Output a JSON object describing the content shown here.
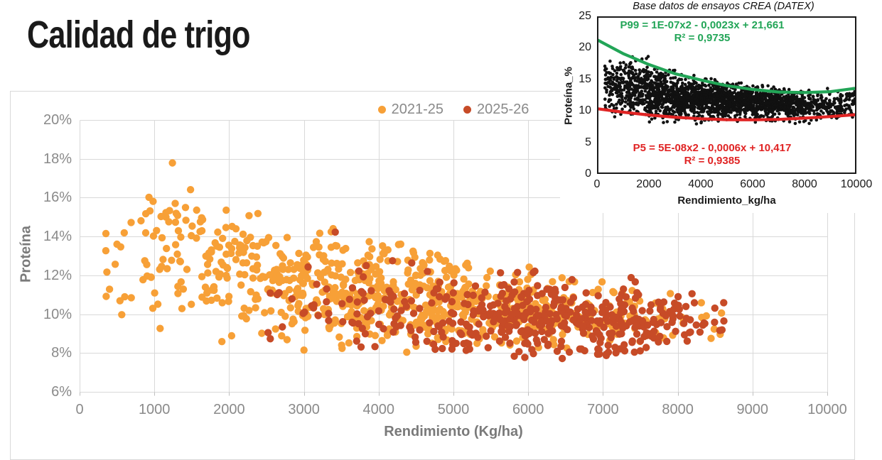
{
  "page": {
    "title": "Calidad de trigo"
  },
  "colors": {
    "series_2021_25": "#f7a037",
    "series_2025_26": "#c74b27",
    "axis_text": "#8a8a8a",
    "gridline": "#d9d9d9",
    "card_border": "#d9d9d9",
    "inset_point": "#111111",
    "inset_green": "#22a557",
    "inset_red": "#e02424"
  },
  "chart_data": [
    {
      "id": "main",
      "type": "scatter",
      "title": "",
      "xlabel": "Rendimiento (Kg/ha)",
      "ylabel": "Proteína",
      "xlim": [
        0,
        10000
      ],
      "ylim": [
        6,
        20
      ],
      "x_ticks": [
        "0",
        "1000",
        "2000",
        "3000",
        "4000",
        "5000",
        "6000",
        "7000",
        "8000",
        "9000",
        "10000"
      ],
      "x_tick_values": [
        0,
        1000,
        2000,
        3000,
        4000,
        5000,
        6000,
        7000,
        8000,
        9000,
        10000
      ],
      "y_ticks": [
        "20%",
        "18%",
        "16%",
        "14%",
        "12%",
        "10%",
        "8%",
        "6%"
      ],
      "y_tick_values": [
        20,
        18,
        16,
        14,
        12,
        10,
        8,
        6
      ],
      "grid": true,
      "legend_position": "top-center",
      "note": "Dense scatter; individual points not enumerable. Each series is encoded as distribution bands [xMin,xMax,count,proteinMean,proteinSD,proteinMin,proteinMax] that reproduce the visible cloud.",
      "series": [
        {
          "name": "2021-25",
          "color": "#f7a037",
          "marker_radius": 5.2,
          "seed": 1337,
          "bands": [
            [
              250,
              800,
              14,
              12.8,
              2.0,
              9.5,
              16.3
            ],
            [
              800,
              1600,
              55,
              13.6,
              2.1,
              9.0,
              18.0
            ],
            [
              1600,
              2500,
              95,
              12.2,
              1.7,
              8.4,
              15.6
            ],
            [
              2500,
              3500,
              135,
              11.5,
              1.5,
              8.0,
              14.6
            ],
            [
              3500,
              4500,
              160,
              11.0,
              1.3,
              8.0,
              13.8
            ],
            [
              4500,
              5500,
              150,
              10.5,
              1.15,
              8.0,
              13.2
            ],
            [
              5500,
              6500,
              105,
              10.2,
              1.0,
              8.2,
              12.6
            ],
            [
              6500,
              7500,
              55,
              10.0,
              0.9,
              8.2,
              11.9
            ],
            [
              7500,
              8600,
              22,
              9.9,
              0.7,
              8.7,
              11.2
            ]
          ]
        },
        {
          "name": "2025-26",
          "color": "#c74b27",
          "marker_radius": 5.2,
          "seed": 4242,
          "bands": [
            [
              2400,
              3600,
              22,
              10.4,
              1.4,
              8.0,
              14.7
            ],
            [
              3600,
              4700,
              55,
              10.2,
              1.2,
              8.0,
              13.0
            ],
            [
              4700,
              5700,
              95,
              10.0,
              1.1,
              7.9,
              12.9
            ],
            [
              5700,
              6600,
              115,
              9.8,
              1.1,
              7.6,
              13.7
            ],
            [
              6600,
              7500,
              110,
              9.6,
              0.95,
              7.6,
              13.0
            ],
            [
              7500,
              8200,
              50,
              9.6,
              0.8,
              8.2,
              11.6
            ],
            [
              8200,
              8620,
              12,
              9.8,
              0.6,
              8.9,
              10.9
            ]
          ]
        }
      ]
    },
    {
      "id": "inset",
      "type": "scatter",
      "title": "Base datos de ensayos CREA (DATEX)",
      "xlabel": "Rendimiento_kg/ha",
      "ylabel": "Proteína_%",
      "xlim": [
        0,
        10000
      ],
      "ylim": [
        0,
        25
      ],
      "x_ticks": [
        "0",
        "2000",
        "4000",
        "6000",
        "8000",
        "10000"
      ],
      "x_tick_values": [
        0,
        2000,
        4000,
        6000,
        8000,
        10000
      ],
      "y_ticks": [
        "25",
        "20",
        "15",
        "10",
        "5",
        "0"
      ],
      "y_tick_values": [
        25,
        20,
        15,
        10,
        5,
        0
      ],
      "grid": false,
      "note": "Black cloud of trial database points between P5 and P99 percentile curves.",
      "series": [
        {
          "name": "ensayos",
          "color": "#111111",
          "marker_radius": 2.3,
          "seed": 2024,
          "bands": [
            [
              300,
              1100,
              130,
              14.5,
              2.5,
              8.5,
              19.3
            ],
            [
              1100,
              2000,
              220,
              13.4,
              2.2,
              8.2,
              18.8
            ],
            [
              2000,
              3000,
              300,
              12.5,
              1.8,
              8.0,
              17.0
            ],
            [
              3000,
              4000,
              340,
              12.0,
              1.6,
              7.7,
              16.0
            ],
            [
              4000,
              5000,
              350,
              11.7,
              1.4,
              7.5,
              15.3
            ],
            [
              5000,
              6000,
              330,
              11.5,
              1.3,
              7.6,
              14.6
            ],
            [
              6000,
              7000,
              280,
              11.3,
              1.2,
              7.7,
              14.1
            ],
            [
              7000,
              8000,
              220,
              11.2,
              1.1,
              7.9,
              13.6
            ],
            [
              8000,
              9400,
              160,
              11.0,
              1.2,
              8.0,
              13.6
            ],
            [
              9400,
              10000,
              60,
              11.2,
              1.3,
              8.3,
              13.8
            ]
          ]
        }
      ],
      "curves": [
        {
          "name": "P99",
          "color": "#22a557",
          "equation": "P99 = 1E-07x2 - 0,0023x + 21,661",
          "r2": "R² = 0,9735",
          "points": [
            [
              0,
              21.3
            ],
            [
              1000,
              19.1
            ],
            [
              2000,
              17.35
            ],
            [
              3000,
              15.9
            ],
            [
              4000,
              14.9
            ],
            [
              5000,
              14.0
            ],
            [
              6000,
              13.4
            ],
            [
              7000,
              13.0
            ],
            [
              8000,
              12.9
            ],
            [
              9000,
              13.05
            ],
            [
              10000,
              13.6
            ]
          ]
        },
        {
          "name": "P5",
          "color": "#e02424",
          "equation": "P5 = 5E-08x2 - 0,0006x + 10,417",
          "r2": "R² = 0,9385",
          "points": [
            [
              0,
              10.35
            ],
            [
              1000,
              9.8
            ],
            [
              2000,
              9.35
            ],
            [
              3000,
              9.0
            ],
            [
              4000,
              8.75
            ],
            [
              5000,
              8.6
            ],
            [
              6000,
              8.58
            ],
            [
              7000,
              8.65
            ],
            [
              8000,
              8.85
            ],
            [
              9000,
              9.1
            ],
            [
              10000,
              9.4
            ]
          ]
        }
      ]
    }
  ]
}
